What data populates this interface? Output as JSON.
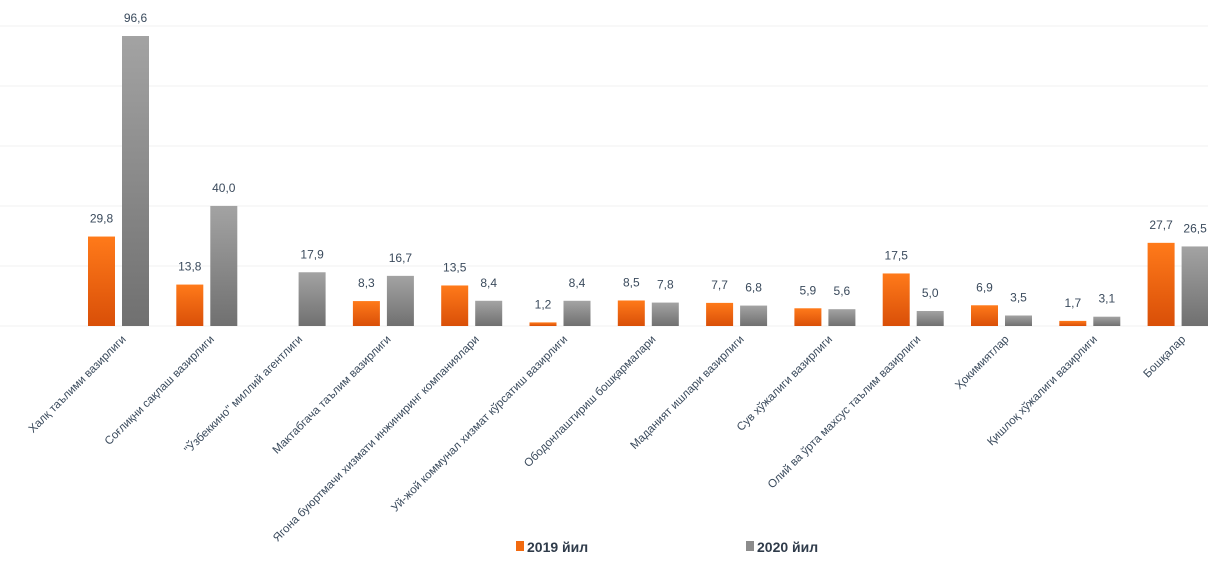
{
  "chart_data": {
    "type": "bar",
    "categories": [
      "Халқ таълими вазирлиги",
      "Соғлиқни сақлаш вазирлиги",
      "\"Ўзбеккино\" миллий агентлиги",
      "Мактабгача таълим вазирлиги",
      "Ягона буюртмачи хизмати инжиниринг компаниялари",
      "Уй-жой коммунал хизмат кўрсатиш вазирлиги",
      "Ободонлаштириш бошқармалари",
      "Маданият ишлари вазирлиги",
      "Сув хўжалиги вазирлиги",
      "Олий ва ўрта махсус таълим вазирлиги",
      "Ҳокимиятлар",
      "Қишлоқ хўжалиги вазирлиги",
      "Бошқалар"
    ],
    "series": [
      {
        "name": "2019 йил",
        "values": [
          29.8,
          13.8,
          null,
          8.3,
          13.5,
          1.2,
          8.5,
          7.7,
          5.9,
          17.5,
          6.9,
          1.7,
          27.7
        ],
        "labels": [
          "29,8",
          "13,8",
          "",
          "8,3",
          "13,5",
          "1,2",
          "8,5",
          "7,7",
          "5,9",
          "17,5",
          "6,9",
          "1,7",
          "27,7"
        ],
        "color": "#f26a10"
      },
      {
        "name": "2020 йил",
        "values": [
          96.6,
          40.0,
          17.9,
          16.7,
          8.4,
          8.4,
          7.8,
          6.8,
          5.6,
          5.0,
          3.5,
          3.1,
          26.5
        ],
        "labels": [
          "96,6",
          "40,0",
          "17,9",
          "16,7",
          "8,4",
          "8,4",
          "7,8",
          "6,8",
          "5,6",
          "5,0",
          "3,5",
          "3,1",
          "26,5"
        ],
        "color": "#8c8c8c"
      }
    ],
    "ylim": [
      0,
      100
    ],
    "grid": true,
    "legend": "bottom"
  }
}
